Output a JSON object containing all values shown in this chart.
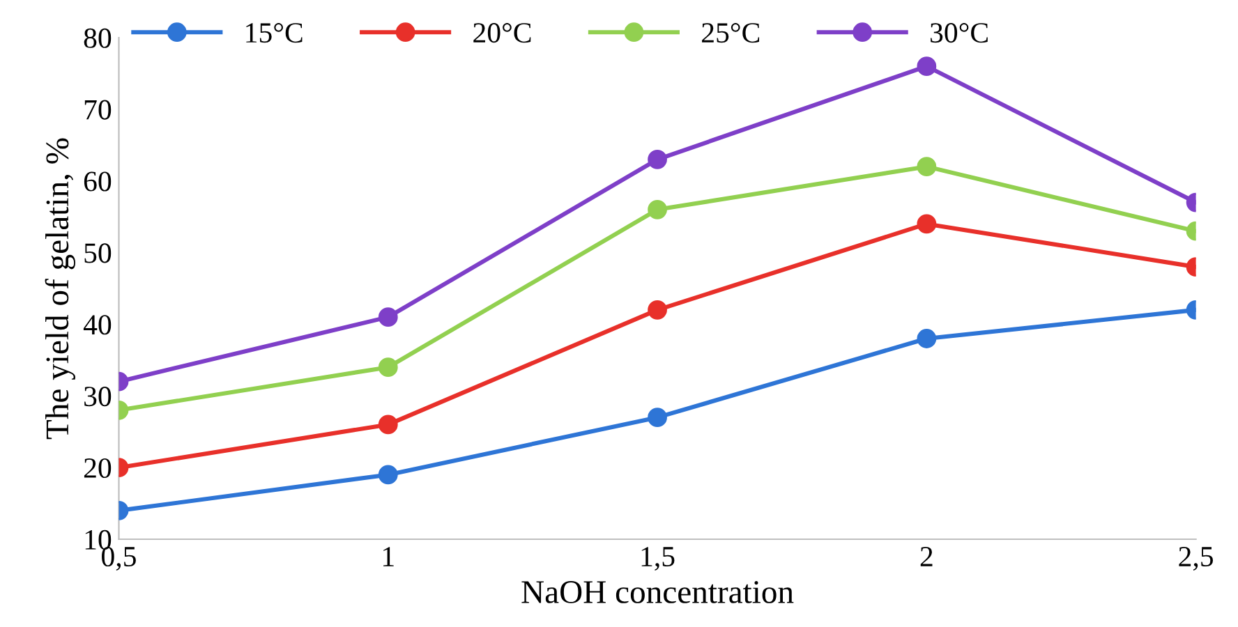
{
  "chart_data": {
    "type": "line",
    "xlabel": "NaOH concentration",
    "ylabel": "The yield of gelatin, %",
    "categories": [
      "0,5",
      "1",
      "1,5",
      "2",
      "2,5"
    ],
    "series": [
      {
        "name": "15°C",
        "color": "#2e75d6",
        "values": [
          14,
          19,
          27,
          38,
          42
        ]
      },
      {
        "name": "20°C",
        "color": "#e8302a",
        "values": [
          20,
          26,
          42,
          54,
          48
        ]
      },
      {
        "name": "25°C",
        "color": "#92d050",
        "values": [
          28,
          34,
          56,
          62,
          53
        ]
      },
      {
        "name": "30°C",
        "color": "#7e3fc8",
        "values": [
          32,
          41,
          63,
          76,
          57
        ]
      }
    ],
    "ylim": [
      10,
      80
    ],
    "yticks": [
      10,
      20,
      30,
      40,
      50,
      60,
      70,
      80
    ],
    "grid": false,
    "legend": "top left",
    "marker": "circle",
    "line_style": "solid"
  }
}
